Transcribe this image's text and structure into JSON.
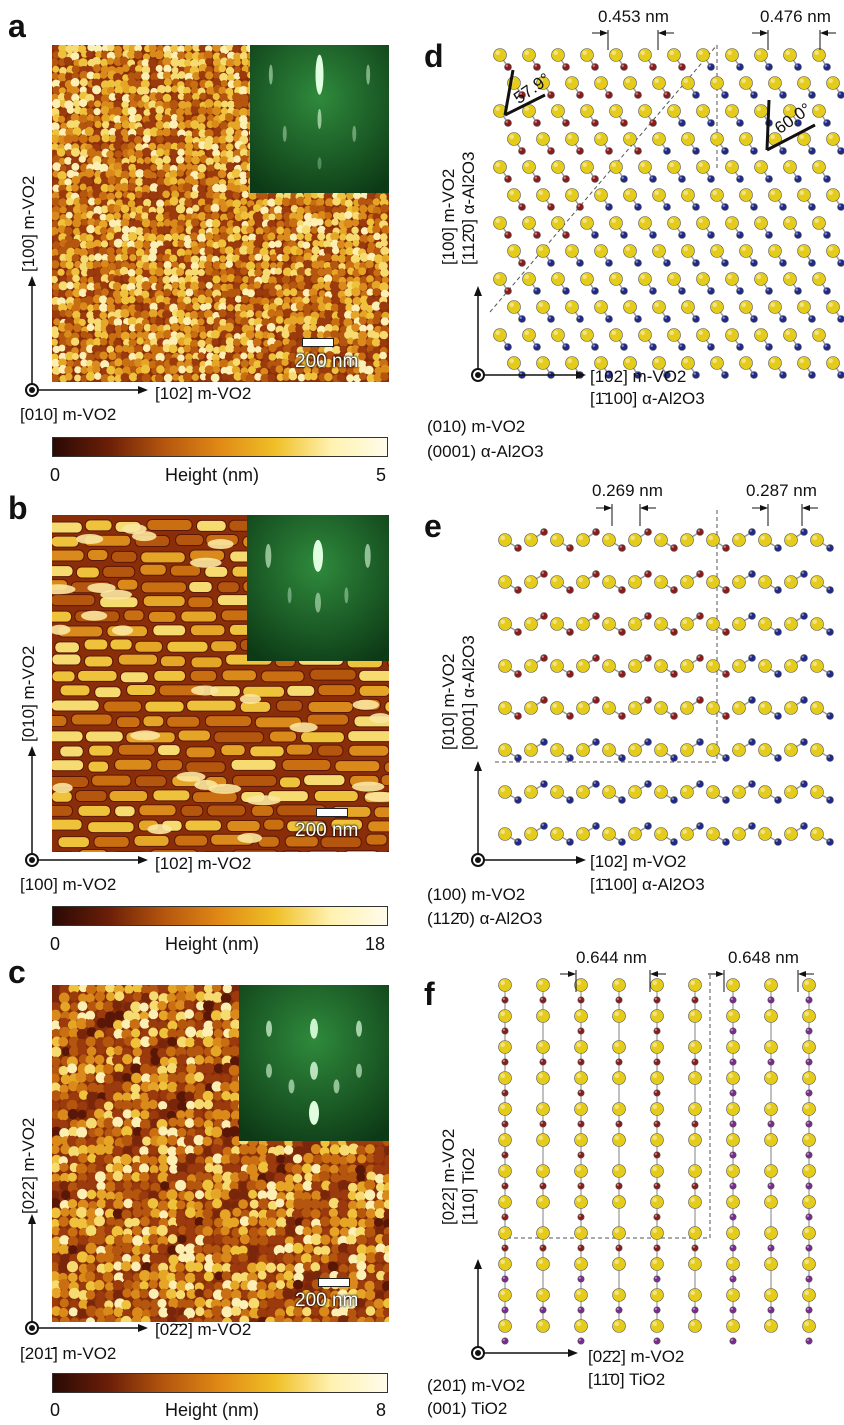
{
  "panels": [
    {
      "letter": "a",
      "afm_style": "grain-fine",
      "scale_label": "200 nm",
      "vertical_axis": "[100] m-VO2",
      "horizontal_axis": "[102] m-VO2",
      "out_of_plane": "[010] m-VO2",
      "colorbar": {
        "min": "0",
        "label": "Height (nm)",
        "max": "5"
      }
    },
    {
      "letter": "b",
      "afm_style": "elongated-grains",
      "scale_label": "200 nm",
      "vertical_axis": "[010] m-VO2",
      "horizontal_axis": "[102] m-VO2",
      "out_of_plane": "[100] m-VO2",
      "colorbar": {
        "min": "0",
        "label": "Height (nm)",
        "max": "18"
      }
    },
    {
      "letter": "c",
      "afm_style": "grain-diagonal",
      "scale_label": "200 nm",
      "vertical_axis": "[022] m-VO2",
      "horizontal_axis": "[02̄2] m-VO2",
      "out_of_plane": "[201̄] m-VO2",
      "colorbar": {
        "min": "0",
        "label": "Height (nm)",
        "max": "8"
      }
    }
  ],
  "structures": [
    {
      "letter": "d",
      "spacing_left": "0.453 nm",
      "spacing_right": "0.476 nm",
      "angle_left": "57.9°",
      "angle_right": "60.0°",
      "vertical_axis": "[100] m-VO2",
      "vertical_axis_2": "[112̄0] α-Al2O3",
      "horizontal_axis": "[102] m-VO2",
      "horizontal_axis_2": "[1̄100] α-Al2O3",
      "plane_1": "(010) m-VO2",
      "plane_2": "(0001) α-Al2O3",
      "lattice": "hex"
    },
    {
      "letter": "e",
      "spacing_left": "0.269 nm",
      "spacing_right": "0.287 nm",
      "vertical_axis": "[010] m-VO2",
      "vertical_axis_2": "[0001] α-Al2O3",
      "horizontal_axis": "[102] m-VO2",
      "horizontal_axis_2": "[1̄100] α-Al2O3",
      "plane_1": "(100) m-VO2",
      "plane_2": "(112̄0) α-Al2O3",
      "lattice": "zigzag"
    },
    {
      "letter": "f",
      "spacing_left": "0.644 nm",
      "spacing_right": "0.648 nm",
      "vertical_axis": "[022] m-VO2",
      "vertical_axis_2": "[110] TiO2",
      "horizontal_axis": "[02̄2] m-VO2",
      "horizontal_axis_2": "[11̄0] TiO2",
      "plane_1": "(201̄) m-VO2",
      "plane_2": "(001) TiO2",
      "lattice": "columns"
    }
  ],
  "colors": {
    "oxygen": "#e6cc1a",
    "vanadium": "#8c1c1c",
    "aluminum": "#1f2a8a",
    "titanium": "#7b2a8f",
    "rheed_green": "#1f6b2e"
  }
}
